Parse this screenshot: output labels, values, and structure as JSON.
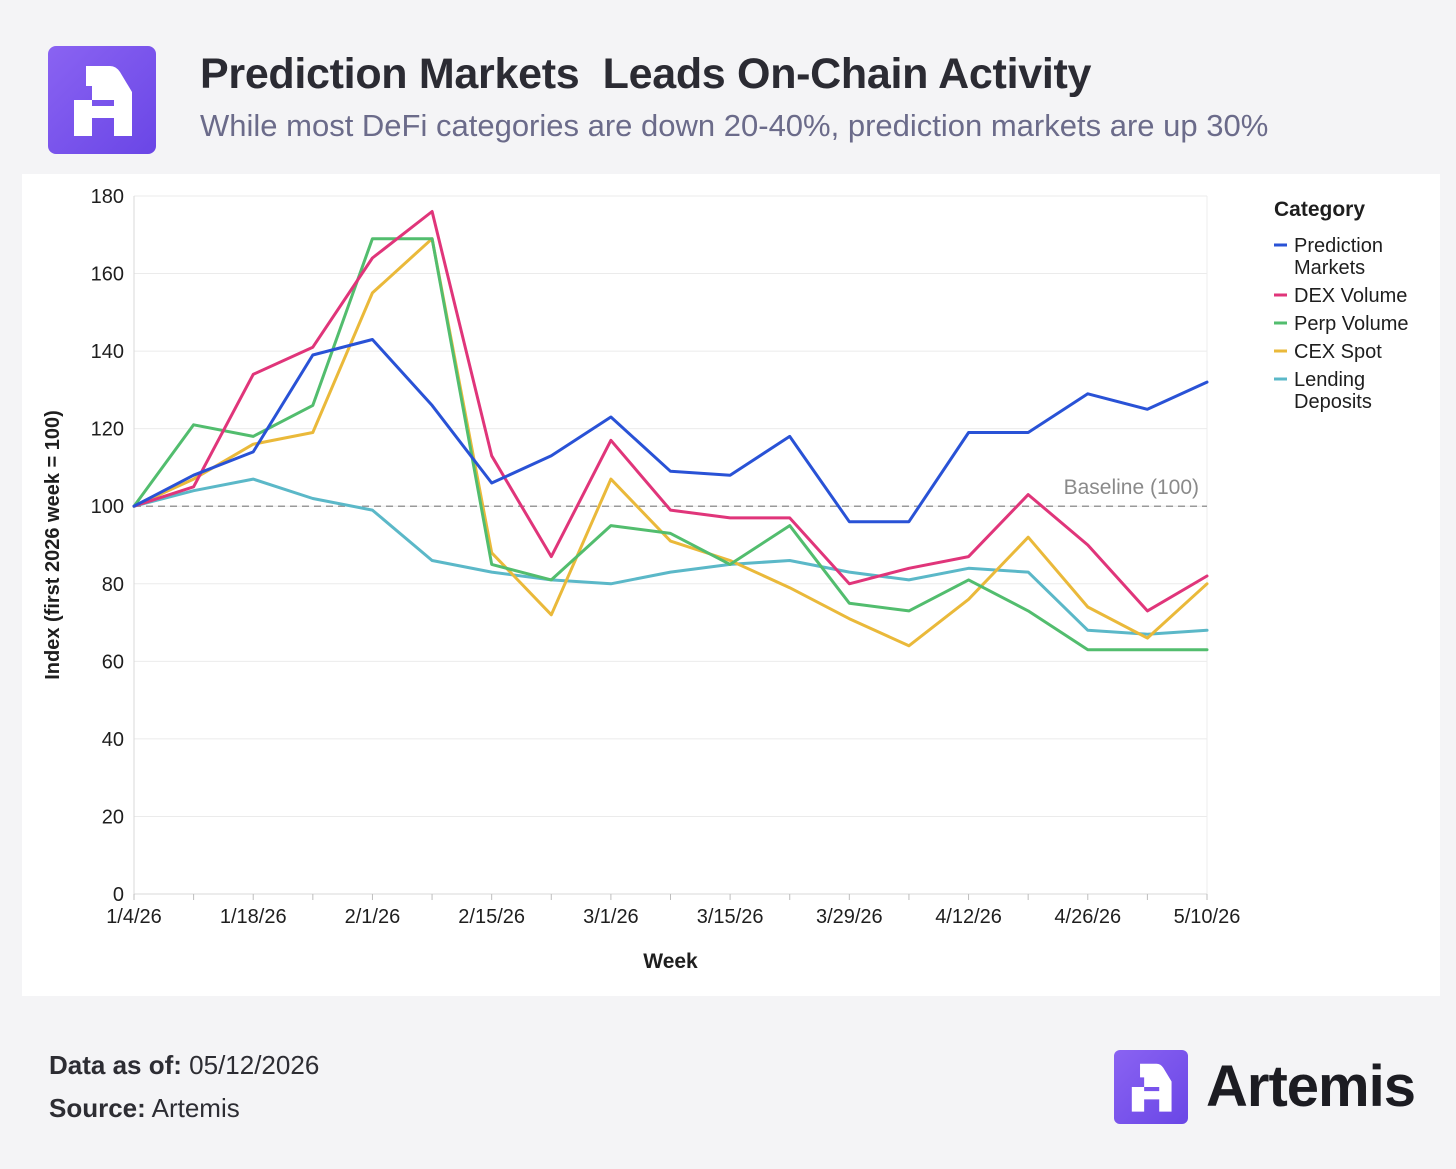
{
  "header": {
    "title": "Prediction Markets  Leads On-Chain Activity",
    "subtitle": "While most DeFi categories are down 20-40%, prediction markets are up 30%"
  },
  "footer": {
    "data_as_of_label": "Data as of:",
    "data_as_of_value": " 05/12/2026",
    "source_label": "Source:",
    "source_value": " Artemis",
    "brand": "Artemis"
  },
  "colors": {
    "brand_purple": "#7c5cf0",
    "prediction": "#2952d6",
    "dex": "#e0357a",
    "perp": "#52bd6e",
    "cex": "#eab93a",
    "lending": "#5bb8c8",
    "baseline": "#999999"
  },
  "chart_data": {
    "type": "line",
    "xlabel": "Week",
    "ylabel": "Index (first 2026 week = 100)",
    "ylim": [
      0,
      180
    ],
    "yticks": [
      0,
      20,
      40,
      60,
      80,
      100,
      120,
      140,
      160,
      180
    ],
    "x": [
      "1/4/26",
      "1/11/26",
      "1/18/26",
      "1/25/26",
      "2/1/26",
      "2/8/26",
      "2/15/26",
      "2/22/26",
      "3/1/26",
      "3/8/26",
      "3/15/26",
      "3/22/26",
      "3/29/26",
      "4/5/26",
      "4/12/26",
      "4/19/26",
      "4/26/26",
      "5/3/26",
      "5/10/26"
    ],
    "xtick_labels": [
      "1/4/26",
      "1/18/26",
      "2/1/26",
      "2/15/26",
      "3/1/26",
      "3/15/26",
      "3/29/26",
      "4/12/26",
      "4/26/26",
      "5/10/26"
    ],
    "grid": true,
    "legend_title": "Category",
    "legend_position": "right",
    "baseline": {
      "value": 100,
      "label": "Baseline (100)"
    },
    "series": [
      {
        "name": "Prediction Markets",
        "color": "#2952d6",
        "values": [
          100,
          108,
          114,
          139,
          143,
          126,
          106,
          113,
          123,
          109,
          108,
          118,
          96,
          96,
          119,
          119,
          129,
          125,
          132
        ]
      },
      {
        "name": "DEX Volume",
        "color": "#e0357a",
        "values": [
          100,
          105,
          134,
          141,
          164,
          176,
          113,
          87,
          117,
          99,
          97,
          97,
          80,
          84,
          87,
          103,
          90,
          73,
          82
        ]
      },
      {
        "name": "Perp Volume",
        "color": "#52bd6e",
        "values": [
          100,
          121,
          118,
          126,
          169,
          169,
          85,
          81,
          95,
          93,
          85,
          95,
          75,
          73,
          81,
          73,
          63,
          63,
          63
        ]
      },
      {
        "name": "CEX Spot",
        "color": "#eab93a",
        "values": [
          100,
          107,
          116,
          119,
          155,
          169,
          88,
          72,
          107,
          91,
          86,
          79,
          71,
          64,
          76,
          92,
          74,
          66,
          80
        ]
      },
      {
        "name": "Lending Deposits",
        "color": "#5bb8c8",
        "values": [
          100,
          104,
          107,
          102,
          99,
          86,
          83,
          81,
          80,
          83,
          85,
          86,
          83,
          81,
          84,
          83,
          68,
          67,
          68
        ]
      }
    ]
  }
}
